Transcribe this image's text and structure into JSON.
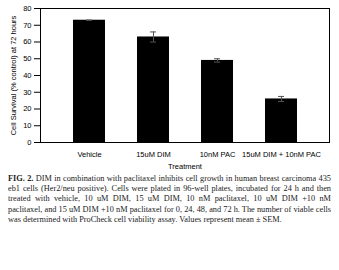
{
  "chart_data": {
    "type": "bar",
    "categories": [
      "Vehicle",
      "15uM DIM",
      "10nM PAC",
      "15uM DIM + 10nM PAC"
    ],
    "values": [
      73,
      63,
      49,
      26
    ],
    "errors": [
      0,
      3,
      1,
      1.5
    ],
    "color": "#000000",
    "ylabel": "Cell Survival (% control) at 72 hours",
    "xlabel": "Treatment",
    "ylim": [
      0,
      80
    ],
    "yticks": [
      0,
      10,
      20,
      30,
      40,
      50,
      60,
      70,
      80
    ],
    "grid": false,
    "caption_label": "FIG. 2.",
    "caption": "DIM in combination with paclitaxel inhibits cell growth in human breast carcinoma 435 eb1 cells (Her2/neu positive). Cells were plated in 96-well plates, incubated for 24 h and then treated with vehicle, 10 uM DIM, 15 uM DIM, 10 nM paclitaxel, 10 uM DIM +10 nM paclitaxel, and 15 uM DIM +10 nM paclitaxel for 0, 24, 48, and 72 h. The number of viable cells was determined with ProCheck cell viability assay. Values represent mean ± SEM."
  }
}
